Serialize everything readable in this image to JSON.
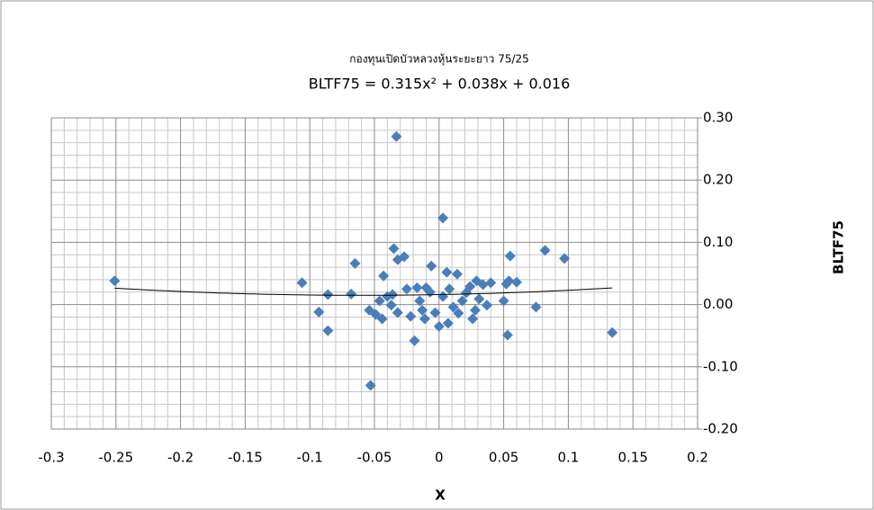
{
  "chart_data": {
    "type": "scatter",
    "title": "กองทุนเปิดบัวหลวงหุ้นระยะยาว 75/25",
    "subtitle": "BLTF75 = 0.315x² + 0.038x + 0.016",
    "x_label": "X",
    "y_label": "BLTF75",
    "series": [
      {
        "name": "BLTF75",
        "color": "#4a7ebb",
        "x": [
          -0.251,
          -0.033,
          0.003,
          -0.106,
          -0.093,
          -0.086,
          -0.086,
          -0.068,
          -0.065,
          -0.053,
          -0.043,
          -0.035,
          -0.032,
          -0.027,
          -0.054,
          -0.049,
          -0.044,
          -0.046,
          -0.04,
          -0.037,
          -0.036,
          -0.032,
          -0.025,
          -0.022,
          -0.019,
          -0.017,
          -0.015,
          -0.013,
          -0.011,
          -0.01,
          -0.007,
          -0.006,
          -0.003,
          0,
          0.003,
          0.006,
          0.007,
          0.008,
          0.011,
          0.014,
          0.015,
          0.018,
          0.021,
          0.024,
          0.026,
          0.028,
          0.029,
          0.031,
          0.034,
          0.037,
          0.04,
          0.05,
          0.052,
          0.053,
          0.054,
          0.055,
          0.06,
          0.075,
          0.082,
          0.097,
          0.134
        ],
        "values": [
          0.038,
          0.27,
          0.139,
          0.035,
          -0.012,
          0.016,
          -0.042,
          0.017,
          0.066,
          -0.13,
          0.046,
          0.09,
          0.072,
          0.077,
          -0.009,
          -0.016,
          -0.023,
          0.006,
          0.013,
          -0.001,
          0.016,
          -0.013,
          0.025,
          -0.019,
          -0.058,
          0.027,
          0.006,
          -0.009,
          -0.023,
          0.027,
          0.02,
          0.062,
          -0.013,
          -0.035,
          0.013,
          0.052,
          -0.03,
          0.025,
          -0.004,
          0.049,
          -0.014,
          0.006,
          0.019,
          0.029,
          -0.023,
          -0.009,
          0.038,
          0.009,
          0.032,
          -0.001,
          0.035,
          0.006,
          0.033,
          -0.049,
          0.038,
          0.078,
          0.036,
          -0.004,
          0.087,
          0.074,
          -0.045
        ]
      }
    ],
    "trendline": {
      "coefficients": [
        0.315,
        0.038,
        0.016
      ],
      "color": "#000000"
    },
    "xlim": [
      -0.3,
      0.2
    ],
    "xticks": [
      -0.3,
      -0.25,
      -0.2,
      -0.15,
      -0.1,
      -0.05,
      0,
      0.05,
      0.1,
      0.15,
      0.2
    ],
    "ylim": [
      -0.2,
      0.3
    ],
    "yticks": [
      {
        "value": -0.2,
        "label": "-0.20"
      },
      {
        "value": -0.1,
        "label": "-0.10"
      },
      {
        "value": 0,
        "label": "0.00"
      },
      {
        "value": 0.1,
        "label": "0.10"
      },
      {
        "value": 0.2,
        "label": "0.20"
      },
      {
        "value": 0.3,
        "label": "0.30"
      }
    ],
    "grid": true
  }
}
